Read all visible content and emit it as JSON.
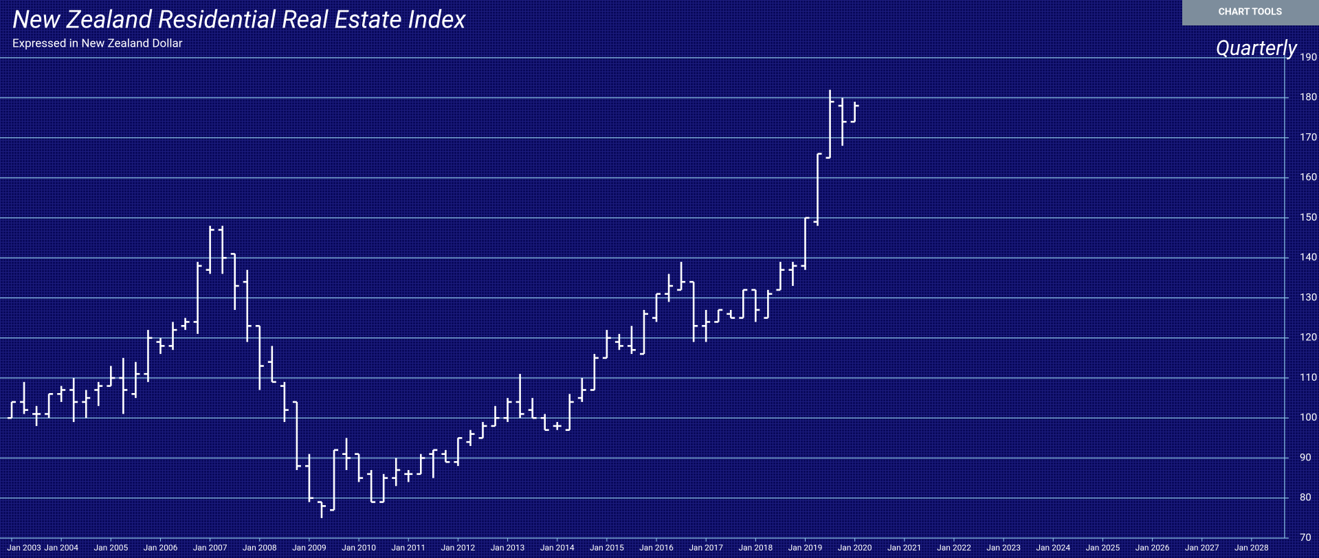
{
  "toolbar": {
    "button": "CHART TOOLS"
  },
  "chart_data": {
    "type": "ohlc",
    "title": "New Zealand Residential Real Estate Index",
    "subtitle": "Expressed in New Zealand Dollar",
    "frequency": "Quarterly",
    "color": "#ffffff",
    "grid": true,
    "grid_color": "#8ec8e8",
    "y_axis_side": "right",
    "ylim": [
      70,
      190
    ],
    "yticks": [
      70,
      80,
      90,
      100,
      110,
      120,
      130,
      140,
      150,
      160,
      170,
      180,
      190
    ],
    "xlim": [
      "2002-12",
      "2028-09"
    ],
    "xticks": [
      {
        "value": "2003-01",
        "label": "Jan 2003"
      },
      {
        "value": "2004-01",
        "label": "Jan 2004"
      },
      {
        "value": "2005-01",
        "label": "Jan 2005"
      },
      {
        "value": "2006-01",
        "label": "Jan 2006"
      },
      {
        "value": "2007-01",
        "label": "Jan 2007"
      },
      {
        "value": "2008-01",
        "label": "Jan 2008"
      },
      {
        "value": "2009-01",
        "label": "Jan 2009"
      },
      {
        "value": "2010-01",
        "label": "Jan 2010"
      },
      {
        "value": "2011-01",
        "label": "Jan 2011"
      },
      {
        "value": "2012-01",
        "label": "Jan 2012"
      },
      {
        "value": "2013-01",
        "label": "Jan 2013"
      },
      {
        "value": "2014-01",
        "label": "Jan 2014"
      },
      {
        "value": "2015-01",
        "label": "Jan 2015"
      },
      {
        "value": "2016-01",
        "label": "Jan 2016"
      },
      {
        "value": "2017-01",
        "label": "Jan 2017"
      },
      {
        "value": "2018-01",
        "label": "Jan 2018"
      },
      {
        "value": "2019-01",
        "label": "Jan 2019"
      },
      {
        "value": "2020-01",
        "label": "Jan 2020"
      },
      {
        "value": "2021-01",
        "label": "Jan 2021"
      },
      {
        "value": "2022-01",
        "label": "Jan 2022"
      },
      {
        "value": "2023-01",
        "label": "Jan 2023"
      },
      {
        "value": "2024-01",
        "label": "Jan 2024"
      },
      {
        "value": "2025-01",
        "label": "Jan 2025"
      },
      {
        "value": "2026-01",
        "label": "Jan 2026"
      },
      {
        "value": "2027-01",
        "label": "Jan 2027"
      },
      {
        "value": "2028-01",
        "label": "Jan 2028"
      }
    ],
    "x": [
      "2003-01",
      "2003-04",
      "2003-07",
      "2003-10",
      "2004-01",
      "2004-04",
      "2004-07",
      "2004-10",
      "2005-01",
      "2005-04",
      "2005-07",
      "2005-10",
      "2006-01",
      "2006-04",
      "2006-07",
      "2006-10",
      "2007-01",
      "2007-04",
      "2007-07",
      "2007-10",
      "2008-01",
      "2008-04",
      "2008-07",
      "2008-10",
      "2009-01",
      "2009-04",
      "2009-07",
      "2009-10",
      "2010-01",
      "2010-04",
      "2010-07",
      "2010-10",
      "2011-01",
      "2011-04",
      "2011-07",
      "2011-10",
      "2012-01",
      "2012-04",
      "2012-07",
      "2012-10",
      "2013-01",
      "2013-04",
      "2013-07",
      "2013-10",
      "2014-01",
      "2014-04",
      "2014-07",
      "2014-10",
      "2015-01",
      "2015-04",
      "2015-07",
      "2015-10",
      "2016-01",
      "2016-04",
      "2016-07",
      "2016-10",
      "2017-01",
      "2017-04",
      "2017-07",
      "2017-10",
      "2018-01",
      "2018-04",
      "2018-07",
      "2018-10",
      "2019-01",
      "2019-04",
      "2019-07",
      "2019-10",
      "2020-01"
    ],
    "open": [
      100,
      104,
      101,
      101,
      106,
      107,
      104,
      107,
      108,
      110,
      106,
      111,
      119,
      118,
      123,
      124,
      137,
      147,
      141,
      134,
      123,
      114,
      108,
      104,
      88,
      79,
      77,
      91,
      91,
      86,
      79,
      85,
      86,
      86,
      91,
      91,
      89,
      94,
      95,
      98,
      100,
      104,
      102,
      100,
      98,
      97,
      105,
      107,
      115,
      119,
      118,
      116,
      125,
      131,
      132,
      134,
      123,
      124,
      126,
      125,
      132,
      125,
      132,
      137,
      138,
      149,
      165,
      178,
      174
    ],
    "high": [
      104,
      109,
      103,
      106,
      108,
      110,
      107,
      109,
      113,
      115,
      114,
      122,
      120,
      124,
      125,
      139,
      148,
      148,
      141,
      137,
      123,
      118,
      109,
      104,
      91,
      79,
      92,
      95,
      91,
      87,
      86,
      90,
      87,
      91,
      92,
      92,
      95,
      97,
      99,
      103,
      105,
      111,
      105,
      101,
      99,
      106,
      110,
      116,
      122,
      121,
      123,
      127,
      131,
      136,
      139,
      134,
      127,
      127,
      127,
      132,
      132,
      132,
      139,
      139,
      150,
      166,
      182,
      180,
      179
    ],
    "low": [
      100,
      101,
      98,
      100,
      104,
      99,
      100,
      103,
      108,
      101,
      105,
      109,
      116,
      117,
      122,
      121,
      136,
      136,
      127,
      119,
      107,
      109,
      99,
      87,
      79,
      75,
      77,
      87,
      84,
      79,
      79,
      83,
      84,
      86,
      85,
      89,
      88,
      93,
      95,
      98,
      99,
      100,
      100,
      97,
      97,
      97,
      104,
      107,
      115,
      117,
      116,
      116,
      124,
      129,
      132,
      119,
      119,
      124,
      125,
      125,
      124,
      125,
      132,
      133,
      137,
      148,
      165,
      168,
      174
    ],
    "close": [
      104,
      102,
      101,
      106,
      107,
      104,
      105,
      108,
      110,
      107,
      111,
      120,
      118,
      122,
      124,
      138,
      147,
      140,
      133,
      123,
      113,
      109,
      102,
      88,
      80,
      78,
      92,
      90,
      85,
      79,
      85,
      87,
      86,
      90,
      92,
      89,
      95,
      96,
      98,
      100,
      104,
      101,
      100,
      97,
      98,
      104,
      107,
      115,
      120,
      118,
      117,
      126,
      131,
      133,
      134,
      123,
      124,
      127,
      125,
      132,
      127,
      131,
      137,
      138,
      150,
      166,
      179,
      174,
      178
    ]
  }
}
